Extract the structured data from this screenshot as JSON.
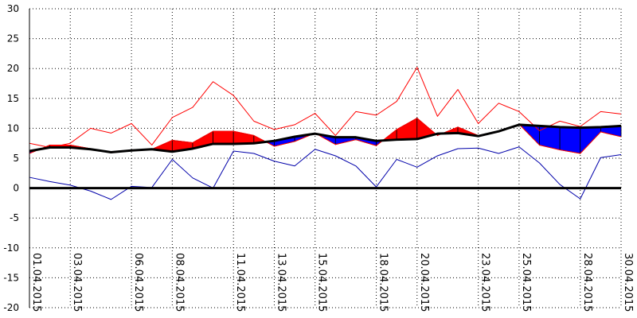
{
  "chart_data": {
    "type": "line",
    "title": "",
    "xlabel": "",
    "ylabel": "",
    "ylim": [
      -20,
      30
    ],
    "yticks": [
      "30",
      "25",
      "20",
      "15",
      "10",
      "5",
      "0",
      "-5",
      "-10",
      "-15",
      "-20"
    ],
    "grid": true,
    "x": [
      "01.04.2015",
      "02.04.2015",
      "03.04.2015",
      "04.04.2015",
      "05.04.2015",
      "06.04.2015",
      "07.04.2015",
      "08.04.2015",
      "09.04.2015",
      "10.04.2015",
      "11.04.2015",
      "12.04.2015",
      "13.04.2015",
      "14.04.2015",
      "15.04.2015",
      "16.04.2015",
      "17.04.2015",
      "18.04.2015",
      "19.04.2015",
      "20.04.2015",
      "21.04.2015",
      "22.04.2015",
      "23.04.2015",
      "24.04.2015",
      "25.04.2015",
      "26.04.2015",
      "27.04.2015",
      "28.04.2015",
      "29.04.2015",
      "30.04.2015"
    ],
    "xtick_labels": [
      "01.04.2015",
      "03.04.2015",
      "06.04.2015",
      "08.04.2015",
      "11.04.2015",
      "13.04.2015",
      "15.04.2015",
      "18.04.2015",
      "20.04.2015",
      "23.04.2015",
      "25.04.2015",
      "28.04.2015",
      "30.04.2015"
    ],
    "series": [
      {
        "role": "max",
        "color": "#ff0000",
        "values": [
          7.5,
          6.8,
          7.5,
          10.0,
          9.2,
          10.8,
          7.2,
          11.8,
          13.5,
          17.8,
          15.5,
          11.2,
          9.8,
          10.6,
          12.5,
          8.8,
          12.8,
          12.2,
          14.5,
          20.2,
          12.0,
          16.5,
          10.8,
          14.2,
          12.8,
          9.6,
          11.2,
          10.3,
          12.8,
          12.4
        ]
      },
      {
        "role": "mean",
        "color": "#ff0000",
        "values": [
          5.8,
          7.2,
          7.2,
          6.6,
          5.9,
          6.4,
          6.5,
          8.0,
          7.6,
          9.5,
          9.5,
          8.8,
          7.0,
          7.8,
          9.2,
          7.3,
          8.1,
          7.1,
          9.8,
          11.7,
          8.8,
          10.2,
          8.8,
          9.5,
          10.7,
          7.2,
          6.4,
          5.8,
          9.4,
          8.6
        ]
      },
      {
        "role": "normal",
        "color": "#000000",
        "values": [
          6.2,
          6.8,
          6.8,
          6.5,
          6.0,
          6.3,
          6.5,
          6.1,
          6.6,
          7.4,
          7.4,
          7.5,
          7.9,
          8.6,
          9.1,
          8.5,
          8.5,
          7.9,
          8.1,
          8.2,
          9.1,
          9.2,
          8.7,
          9.5,
          10.6,
          10.4,
          10.2,
          10.1,
          10.2,
          10.4
        ]
      },
      {
        "role": "min",
        "color": "#0000aa",
        "values": [
          1.8,
          1.1,
          0.5,
          -0.5,
          -1.9,
          0.3,
          0.1,
          4.8,
          1.7,
          0.0,
          6.2,
          5.8,
          4.5,
          3.7,
          6.5,
          5.4,
          3.7,
          0.2,
          4.8,
          3.5,
          5.4,
          6.6,
          6.7,
          5.8,
          6.9,
          4.2,
          0.6,
          -1.8,
          5.1,
          5.6
        ]
      }
    ],
    "fill_above_normal": "#ff0000",
    "fill_below_normal": "#0000ff",
    "zero_line_color": "#000000"
  }
}
